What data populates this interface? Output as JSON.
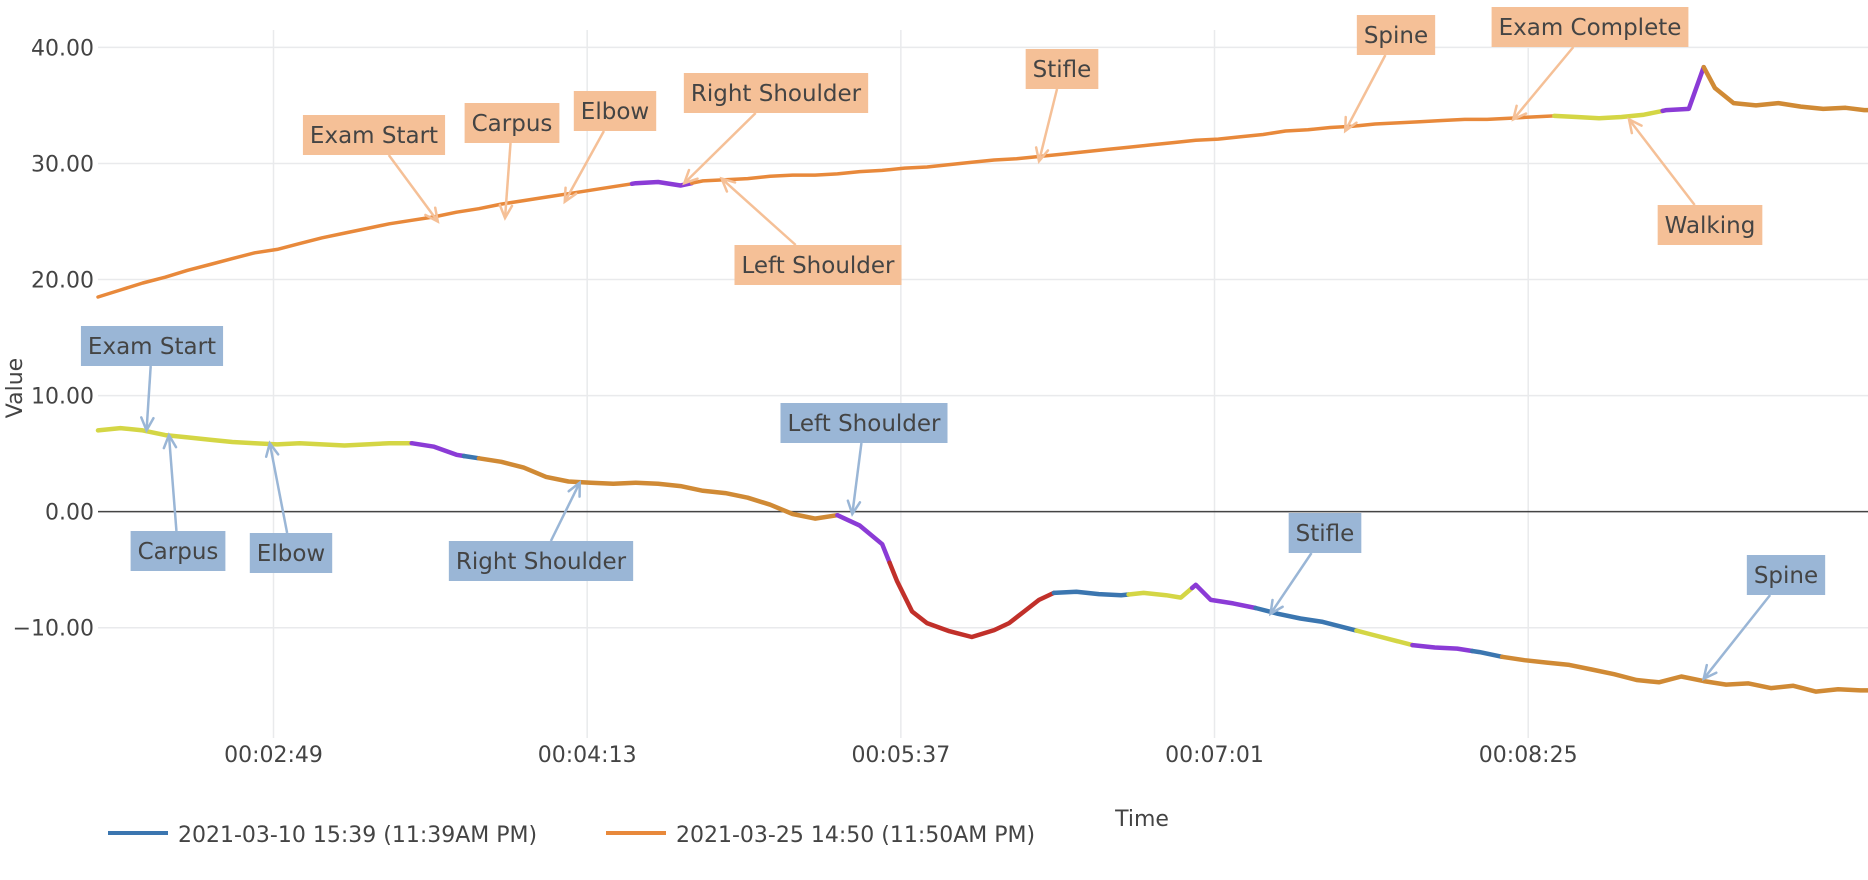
{
  "chart_data": {
    "type": "line",
    "title": "",
    "xlabel": "Time",
    "ylabel": "Value",
    "xlim_seconds": [
      122,
      596
    ],
    "ylim": [
      -19.5,
      41.5
    ],
    "grid": true,
    "zero_line": true,
    "x_ticks": [
      {
        "seconds": 169,
        "label": "00:02:49"
      },
      {
        "seconds": 253,
        "label": "00:04:13"
      },
      {
        "seconds": 337,
        "label": "00:05:37"
      },
      {
        "seconds": 421,
        "label": "00:07:01"
      },
      {
        "seconds": 505,
        "label": "00:08:25"
      }
    ],
    "y_ticks": [
      {
        "value": 40,
        "label": "40.00"
      },
      {
        "value": 30,
        "label": "30.00"
      },
      {
        "value": 20,
        "label": "20.00"
      },
      {
        "value": 10,
        "label": "10.00"
      },
      {
        "value": 0,
        "label": "0.00"
      },
      {
        "value": -10,
        "label": "−10.00"
      }
    ],
    "legend_position": "bottom-left",
    "phase_colors": {
      "base_series_1": "#3b76b0",
      "base_series_2": "#e8893b",
      "yellow": "#d4d645",
      "purple": "#8b3bd6",
      "red": "#c1302a",
      "brown": "#d08a35"
    },
    "series": [
      {
        "name": "2021-03-10 15:39 (11:39AM PM)",
        "legend_label": "2021-03-10 15:39 (11:39AM PM)",
        "color": "#3b76b0",
        "points": [
          [
            122,
            7.0
          ],
          [
            128,
            7.2
          ],
          [
            134,
            7.0
          ],
          [
            140,
            6.6
          ],
          [
            146,
            6.4
          ],
          [
            152,
            6.2
          ],
          [
            158,
            6.0
          ],
          [
            164,
            5.9
          ],
          [
            170,
            5.8
          ],
          [
            176,
            5.9
          ],
          [
            182,
            5.8
          ],
          [
            188,
            5.7
          ],
          [
            194,
            5.8
          ],
          [
            200,
            5.9
          ],
          [
            206,
            5.9
          ],
          [
            212,
            5.6
          ],
          [
            218,
            4.9
          ],
          [
            224,
            4.6
          ],
          [
            230,
            4.3
          ],
          [
            236,
            3.8
          ],
          [
            242,
            3.0
          ],
          [
            248,
            2.6
          ],
          [
            254,
            2.5
          ],
          [
            260,
            2.4
          ],
          [
            266,
            2.5
          ],
          [
            272,
            2.4
          ],
          [
            278,
            2.2
          ],
          [
            284,
            1.8
          ],
          [
            290,
            1.6
          ],
          [
            296,
            1.2
          ],
          [
            302,
            0.6
          ],
          [
            308,
            -0.2
          ],
          [
            314,
            -0.6
          ],
          [
            320,
            -0.3
          ],
          [
            326,
            -1.2
          ],
          [
            332,
            -2.8
          ],
          [
            336,
            -6.0
          ],
          [
            340,
            -8.6
          ],
          [
            344,
            -9.6
          ],
          [
            350,
            -10.3
          ],
          [
            356,
            -10.8
          ],
          [
            362,
            -10.2
          ],
          [
            366,
            -9.6
          ],
          [
            370,
            -8.6
          ],
          [
            374,
            -7.6
          ],
          [
            378,
            -7.0
          ],
          [
            384,
            -6.9
          ],
          [
            390,
            -7.1
          ],
          [
            396,
            -7.2
          ],
          [
            402,
            -7.0
          ],
          [
            408,
            -7.2
          ],
          [
            412,
            -7.4
          ],
          [
            416,
            -6.3
          ],
          [
            420,
            -7.6
          ],
          [
            426,
            -7.9
          ],
          [
            432,
            -8.3
          ],
          [
            438,
            -8.8
          ],
          [
            444,
            -9.2
          ],
          [
            450,
            -9.5
          ],
          [
            456,
            -10.0
          ],
          [
            462,
            -10.5
          ],
          [
            468,
            -11.0
          ],
          [
            474,
            -11.5
          ],
          [
            480,
            -11.7
          ],
          [
            486,
            -11.8
          ],
          [
            492,
            -12.1
          ],
          [
            498,
            -12.5
          ],
          [
            504,
            -12.8
          ],
          [
            510,
            -13.0
          ],
          [
            516,
            -13.2
          ],
          [
            522,
            -13.6
          ],
          [
            528,
            -14.0
          ],
          [
            534,
            -14.5
          ],
          [
            540,
            -14.7
          ],
          [
            546,
            -14.2
          ],
          [
            552,
            -14.6
          ],
          [
            558,
            -14.9
          ],
          [
            564,
            -14.8
          ],
          [
            570,
            -15.2
          ],
          [
            576,
            -15.0
          ],
          [
            582,
            -15.5
          ],
          [
            588,
            -15.3
          ],
          [
            594,
            -15.4
          ]
        ],
        "segments": [
          {
            "from": 122,
            "to": 206,
            "color": "#d4d645"
          },
          {
            "from": 206,
            "to": 220,
            "color": "#8b3bd6"
          },
          {
            "from": 220,
            "to": 224,
            "color": "#3b76b0"
          },
          {
            "from": 224,
            "to": 320,
            "color": "#d08a35"
          },
          {
            "from": 320,
            "to": 334,
            "color": "#8b3bd6"
          },
          {
            "from": 334,
            "to": 378,
            "color": "#c1302a"
          },
          {
            "from": 378,
            "to": 398,
            "color": "#3b76b0"
          },
          {
            "from": 398,
            "to": 415,
            "color": "#d4d645"
          },
          {
            "from": 415,
            "to": 432,
            "color": "#8b3bd6"
          },
          {
            "from": 432,
            "to": 459,
            "color": "#3b76b0"
          },
          {
            "from": 459,
            "to": 474,
            "color": "#d4d645"
          },
          {
            "from": 474,
            "to": 490,
            "color": "#8b3bd6"
          },
          {
            "from": 490,
            "to": 498,
            "color": "#3b76b0"
          },
          {
            "from": 498,
            "to": 596,
            "color": "#d08a35"
          }
        ]
      },
      {
        "name": "2021-03-25 14:50 (11:50AM PM)",
        "legend_label": "2021-03-25 14:50 (11:50AM PM)",
        "color": "#e8893b",
        "points": [
          [
            122,
            18.5
          ],
          [
            128,
            19.1
          ],
          [
            134,
            19.7
          ],
          [
            140,
            20.2
          ],
          [
            146,
            20.8
          ],
          [
            152,
            21.3
          ],
          [
            158,
            21.8
          ],
          [
            164,
            22.3
          ],
          [
            170,
            22.6
          ],
          [
            176,
            23.1
          ],
          [
            182,
            23.6
          ],
          [
            188,
            24.0
          ],
          [
            194,
            24.4
          ],
          [
            200,
            24.8
          ],
          [
            206,
            25.1
          ],
          [
            212,
            25.4
          ],
          [
            218,
            25.8
          ],
          [
            224,
            26.1
          ],
          [
            230,
            26.5
          ],
          [
            236,
            26.8
          ],
          [
            242,
            27.1
          ],
          [
            248,
            27.4
          ],
          [
            254,
            27.7
          ],
          [
            260,
            28.0
          ],
          [
            266,
            28.3
          ],
          [
            272,
            28.4
          ],
          [
            278,
            28.1
          ],
          [
            284,
            28.5
          ],
          [
            290,
            28.6
          ],
          [
            296,
            28.7
          ],
          [
            302,
            28.9
          ],
          [
            308,
            29.0
          ],
          [
            314,
            29.0
          ],
          [
            320,
            29.1
          ],
          [
            326,
            29.3
          ],
          [
            332,
            29.4
          ],
          [
            338,
            29.6
          ],
          [
            344,
            29.7
          ],
          [
            350,
            29.9
          ],
          [
            356,
            30.1
          ],
          [
            362,
            30.3
          ],
          [
            368,
            30.4
          ],
          [
            374,
            30.6
          ],
          [
            380,
            30.8
          ],
          [
            386,
            31.0
          ],
          [
            392,
            31.2
          ],
          [
            398,
            31.4
          ],
          [
            404,
            31.6
          ],
          [
            410,
            31.8
          ],
          [
            416,
            32.0
          ],
          [
            422,
            32.1
          ],
          [
            428,
            32.3
          ],
          [
            434,
            32.5
          ],
          [
            440,
            32.8
          ],
          [
            446,
            32.9
          ],
          [
            452,
            33.1
          ],
          [
            458,
            33.2
          ],
          [
            464,
            33.4
          ],
          [
            470,
            33.5
          ],
          [
            476,
            33.6
          ],
          [
            482,
            33.7
          ],
          [
            488,
            33.8
          ],
          [
            494,
            33.8
          ],
          [
            500,
            33.9
          ],
          [
            506,
            34.0
          ],
          [
            512,
            34.1
          ],
          [
            518,
            34.0
          ],
          [
            524,
            33.9
          ],
          [
            530,
            34.0
          ],
          [
            536,
            34.2
          ],
          [
            542,
            34.6
          ],
          [
            548,
            34.7
          ],
          [
            552,
            38.3
          ],
          [
            555,
            36.5
          ],
          [
            560,
            35.2
          ],
          [
            566,
            35.0
          ],
          [
            572,
            35.2
          ],
          [
            578,
            34.9
          ],
          [
            584,
            34.7
          ],
          [
            590,
            34.8
          ],
          [
            595,
            34.6
          ]
        ],
        "segments": [
          {
            "from": 122,
            "to": 265,
            "color": "#e8893b"
          },
          {
            "from": 265,
            "to": 281,
            "color": "#8b3bd6"
          },
          {
            "from": 281,
            "to": 512,
            "color": "#e8893b"
          },
          {
            "from": 512,
            "to": 541,
            "color": "#d4d645"
          },
          {
            "from": 541,
            "to": 552,
            "color": "#8b3bd6"
          },
          {
            "from": 552,
            "to": 596,
            "color": "#d08a35"
          }
        ]
      }
    ],
    "annotations": [
      {
        "series": 1,
        "text": "Exam Start",
        "x": 213,
        "y": 25.0,
        "color": "#f5c097"
      },
      {
        "series": 1,
        "text": "Carpus",
        "x": 231,
        "y": 25.3,
        "color": "#f5c097"
      },
      {
        "series": 1,
        "text": "Elbow",
        "x": 247,
        "y": 26.7,
        "color": "#f5c097"
      },
      {
        "series": 1,
        "text": "Right Shoulder",
        "x": 279,
        "y": 28.3,
        "color": "#f5c097"
      },
      {
        "series": 1,
        "text": "Left Shoulder",
        "x": 289,
        "y": 28.7,
        "color": "#f5c097"
      },
      {
        "series": 1,
        "text": "Stifle",
        "x": 374,
        "y": 30.2,
        "color": "#f5c097"
      },
      {
        "series": 1,
        "text": "Spine",
        "x": 456,
        "y": 32.8,
        "color": "#f5c097"
      },
      {
        "series": 1,
        "text": "Exam Complete",
        "x": 501,
        "y": 33.8,
        "color": "#f5c097"
      },
      {
        "series": 1,
        "text": "Walking",
        "x": 532,
        "y": 33.8,
        "color": "#f5c097"
      },
      {
        "series": 0,
        "text": "Exam Start",
        "x": 135,
        "y": 7.0,
        "color": "#9ab6d6"
      },
      {
        "series": 0,
        "text": "Carpus",
        "x": 141,
        "y": 6.6,
        "color": "#9ab6d6"
      },
      {
        "series": 0,
        "text": "Elbow",
        "x": 168,
        "y": 5.9,
        "color": "#9ab6d6"
      },
      {
        "series": 0,
        "text": "Right Shoulder",
        "x": 251,
        "y": 2.5,
        "color": "#9ab6d6"
      },
      {
        "series": 0,
        "text": "Left Shoulder",
        "x": 324,
        "y": -0.2,
        "color": "#9ab6d6"
      },
      {
        "series": 0,
        "text": "Stifle",
        "x": 436,
        "y": -8.8,
        "color": "#9ab6d6"
      },
      {
        "series": 0,
        "text": "Spine",
        "x": 552,
        "y": -14.4,
        "color": "#9ab6d6"
      }
    ]
  }
}
